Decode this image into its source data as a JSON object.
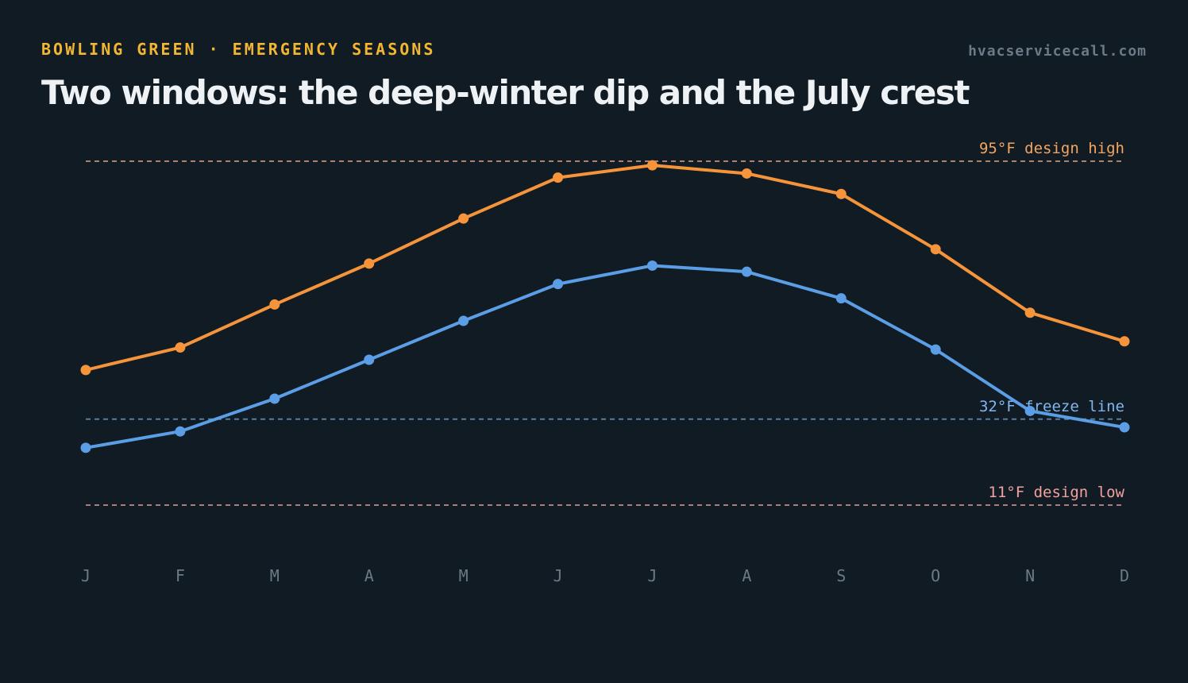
{
  "header": {
    "eyebrow": "BOWLING GREEN · EMERGENCY SEASONS",
    "site": "hvacservicecall.com",
    "title": "Two windows: the deep-winter dip and the July crest"
  },
  "colors": {
    "background": "#101b23",
    "high_series": "#f5943a",
    "low_series": "#5b9ee6",
    "design_high_line": "#c8937a",
    "freeze_line": "#5f8fb8",
    "design_low_line": "#c98c8c",
    "design_high_label": "#f5a560",
    "freeze_label": "#82b7ee",
    "design_low_label": "#f2a0a0",
    "axis_labels": "#6b7a86"
  },
  "chart_data": {
    "type": "line",
    "categories": [
      "J",
      "F",
      "M",
      "A",
      "M",
      "J",
      "J",
      "A",
      "S",
      "O",
      "N",
      "D"
    ],
    "series": [
      {
        "key": "high",
        "values": [
          44,
          49.5,
          60,
          70,
          81,
          91,
          94,
          92,
          87,
          73.5,
          58,
          51
        ]
      },
      {
        "key": "low",
        "values": [
          25,
          29,
          37,
          46.5,
          56,
          65,
          69.5,
          68,
          61.5,
          49,
          34,
          30
        ]
      }
    ],
    "reference_lines": [
      {
        "key": "design_high",
        "value": 95,
        "label": "95°F design high"
      },
      {
        "key": "freeze",
        "value": 32,
        "label": "32°F freeze line"
      },
      {
        "key": "design_low",
        "value": 11,
        "label": "11°F design low"
      }
    ],
    "ylim": [
      -5,
      105
    ],
    "grid": false,
    "legend": "none"
  }
}
